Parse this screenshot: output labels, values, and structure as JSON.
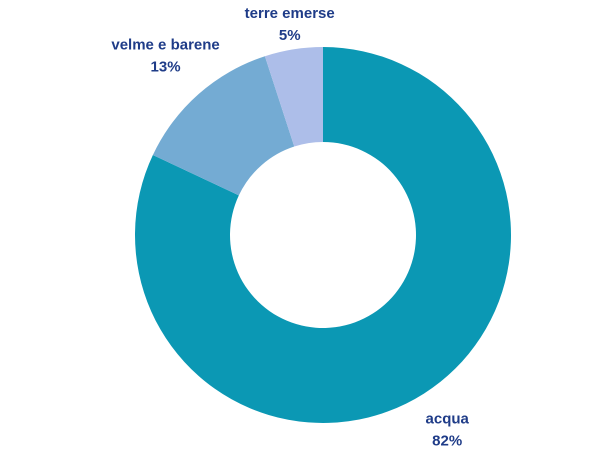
{
  "chart_data": {
    "type": "donut",
    "categories": [
      "acqua",
      "velme e barene",
      "terre emerse"
    ],
    "values": [
      82,
      13,
      5
    ],
    "value_labels": [
      "82%",
      "13%",
      "5%"
    ],
    "colors": [
      "#0b98b4",
      "#74abd3",
      "#adbee9"
    ]
  }
}
